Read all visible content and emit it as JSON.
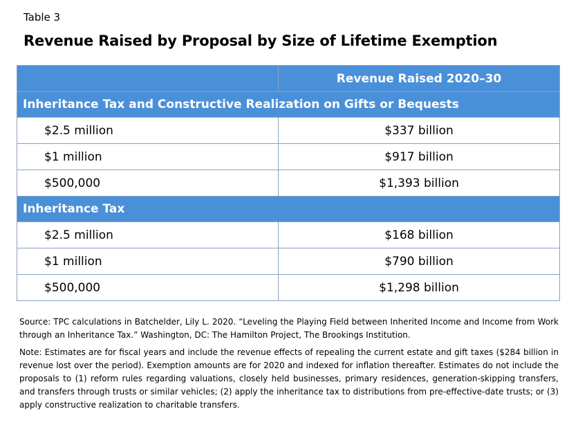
{
  "table_label": "Table 3",
  "title": "Revenue Raised by Proposal by Size of Lifetime Exemption",
  "header": {
    "col1": "",
    "col2": "Revenue Raised 2020–30"
  },
  "sections": [
    {
      "title": "Inheritance Tax and Constructive  Realization on Gifts or Bequests",
      "rows": [
        {
          "exemption": "$2.5 million",
          "revenue": "$337 billion"
        },
        {
          "exemption": "$1 million",
          "revenue": "$917 billion"
        },
        {
          "exemption": "$500,000",
          "revenue": "$1,393 billion"
        }
      ]
    },
    {
      "title": "Inheritance Tax",
      "rows": [
        {
          "exemption": "$2.5 million",
          "revenue": "$168 billion"
        },
        {
          "exemption": "$1 million",
          "revenue": "$790 billion"
        },
        {
          "exemption": "$500,000",
          "revenue": "$1,298 billion"
        }
      ]
    }
  ],
  "source": "Source: TPC calculations in Batchelder, Lily L. 2020. “Leveling the Playing Field between Inherited Income and Income from Work through an Inheritance Tax.” Washington, DC: The Hamilton Project, The Brookings Institution.",
  "note": "Note: Estimates are for fiscal years and include the revenue effects of repealing the current estate and gift taxes ($284 billion in revenue lost over the period). Exemption amounts are for 2020 and indexed for inflation thereafter. Estimates do not include the proposals to (1) reform rules regarding valuations, closely held businesses, primary residences, generation-skipping transfers, and transfers through trusts or similar vehicles; (2) apply the inheritance tax to distributions from pre-effective-date trusts; or (3) apply constructive realization to charitable transfers."
}
